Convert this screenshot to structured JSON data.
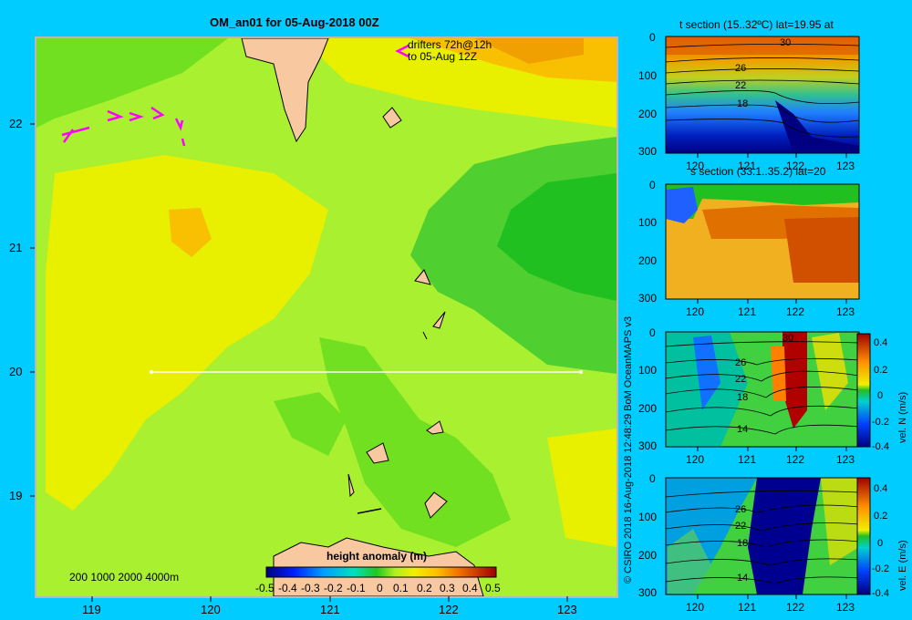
{
  "map": {
    "title": "OM_an01 for 05-Aug-2018 00Z",
    "drifters_label_1": "drifters 72h@12h",
    "drifters_label_2": "to 05-Aug 12Z",
    "x_ticks": [
      "119",
      "120",
      "121",
      "122",
      "123"
    ],
    "y_ticks": [
      "22",
      "21",
      "20",
      "19"
    ],
    "isobaths_legend": "200 1000 2000 4000m",
    "colorbar": {
      "label": "height anomaly (m)",
      "ticks": [
        "-0.5",
        "-0.4",
        "-0.3",
        "-0.2",
        "-0.1",
        "0",
        "0.1",
        "0.2",
        "0.3",
        "0.4",
        "0.5"
      ]
    },
    "section_line": {
      "lat": 20,
      "lon_start": 119.5,
      "lon_end": 123.2
    }
  },
  "copyright": "© CSIRO 2018   16-Aug-2018 12:48:29 BoM OceanMAPS v3",
  "panels": [
    {
      "title": "t section (15..32ºC) lat=19.95 at",
      "contour_labels": [
        "30",
        "26",
        "22",
        "18"
      ],
      "y_ticks": [
        "0",
        "100",
        "200",
        "300"
      ],
      "x_ticks": [
        "120",
        "121",
        "122",
        "123"
      ]
    },
    {
      "title": "s section (33.1..35.2) lat=20",
      "contour_labels": [],
      "y_ticks": [
        "0",
        "100",
        "200",
        "300"
      ],
      "x_ticks": [
        "120",
        "121",
        "122",
        "123"
      ]
    },
    {
      "title": "",
      "contour_labels": [
        "30",
        "26",
        "22",
        "18",
        "14"
      ],
      "y_ticks": [
        "0",
        "100",
        "200",
        "300"
      ],
      "x_ticks": [
        "120",
        "121",
        "122",
        "123"
      ],
      "colorbar_ticks": [
        "0.4",
        "0.2",
        "0",
        "-0.2",
        "-0.4"
      ],
      "colorbar_label": "vel. N (m/s)"
    },
    {
      "title": "",
      "contour_labels": [
        "26",
        "22",
        "18",
        "14"
      ],
      "y_ticks": [
        "0",
        "100",
        "200",
        "300"
      ],
      "x_ticks": [
        "120",
        "121",
        "122",
        "123"
      ],
      "colorbar_ticks": [
        "0.4",
        "0.2",
        "0",
        "-0.2",
        "-0.4"
      ],
      "colorbar_label": "vel. E (m/s)"
    }
  ],
  "colors": {
    "background": "#00ccff",
    "land": "#f8c8a0",
    "section_line": "#ffffff",
    "drifter": "#ff00ff"
  }
}
